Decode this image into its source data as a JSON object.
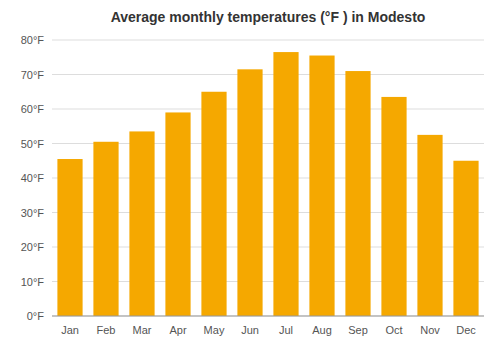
{
  "chart_data": {
    "type": "bar",
    "title": "Average monthly temperatures (°F ) in Modesto",
    "categories": [
      "Jan",
      "Feb",
      "Mar",
      "Apr",
      "May",
      "Jun",
      "Jul",
      "Aug",
      "Sep",
      "Oct",
      "Nov",
      "Dec"
    ],
    "values": [
      45.5,
      50.5,
      53.5,
      59.0,
      65.0,
      71.5,
      76.5,
      75.5,
      71.0,
      63.5,
      52.5,
      45.0
    ],
    "color": "#F5A800",
    "ylim": [
      0,
      80
    ],
    "yticks": [
      {
        "value": 0,
        "label": "0°F"
      },
      {
        "value": 10,
        "label": "10°F"
      },
      {
        "value": 20,
        "label": "20°F"
      },
      {
        "value": 30,
        "label": "30°F"
      },
      {
        "value": 40,
        "label": "40°F"
      },
      {
        "value": 50,
        "label": "50°F"
      },
      {
        "value": 60,
        "label": "60°F"
      },
      {
        "value": 70,
        "label": "70°F"
      },
      {
        "value": 80,
        "label": "80°F"
      }
    ],
    "grid": true
  }
}
